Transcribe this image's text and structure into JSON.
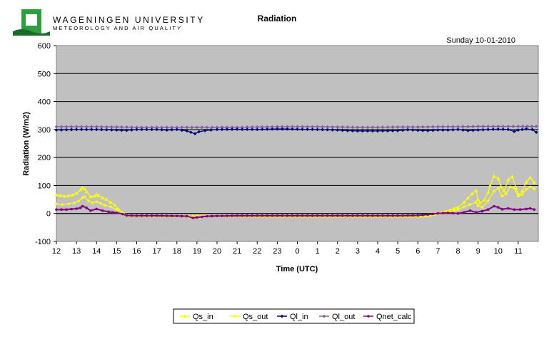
{
  "header": {
    "org_line1": "WAGENINGEN UNIVERSITY",
    "org_line2": "METEOROLOGY AND AIR QUALITY",
    "logo_color": "#2f9e3f"
  },
  "chart_data": {
    "type": "line",
    "title": "Radiation",
    "subtitle": "Sunday 10-01-2010",
    "xlabel": "Time (UTC)",
    "ylabel": "Radiation (W/m2)",
    "ylim": [
      -100,
      600
    ],
    "yticks": [
      -100,
      0,
      100,
      200,
      300,
      400,
      500,
      600
    ],
    "xticks": [
      "12",
      "13",
      "14",
      "15",
      "16",
      "17",
      "18",
      "19",
      "20",
      "21",
      "22",
      "23",
      "0",
      "1",
      "2",
      "3",
      "4",
      "5",
      "6",
      "7",
      "8",
      "9",
      "10",
      "11"
    ],
    "x_range_hours": [
      0,
      24
    ],
    "plot_background": "#c0c0c0",
    "grid": "horizontal",
    "legend_position": "bottom",
    "series": [
      {
        "name": "Qs_in",
        "color": "#ffff00",
        "marker": "triangle",
        "points": [
          [
            0,
            66
          ],
          [
            0.2,
            64
          ],
          [
            0.4,
            62
          ],
          [
            0.6,
            63
          ],
          [
            0.8,
            66
          ],
          [
            1,
            72
          ],
          [
            1.2,
            85
          ],
          [
            1.3,
            92
          ],
          [
            1.4,
            88
          ],
          [
            1.5,
            78
          ],
          [
            1.7,
            60
          ],
          [
            1.9,
            62
          ],
          [
            2,
            68
          ],
          [
            2.1,
            64
          ],
          [
            2.3,
            56
          ],
          [
            2.5,
            50
          ],
          [
            2.7,
            40
          ],
          [
            2.9,
            30
          ],
          [
            3.1,
            14
          ],
          [
            3.3,
            2
          ],
          [
            3.5,
            -6
          ],
          [
            4,
            -8
          ],
          [
            5,
            -9
          ],
          [
            6,
            -9
          ],
          [
            6.3,
            -9
          ],
          [
            6.6,
            -12
          ],
          [
            7,
            -8
          ],
          [
            8,
            -9
          ],
          [
            9,
            -9
          ],
          [
            10,
            -10
          ],
          [
            11,
            -10
          ],
          [
            12,
            -10
          ],
          [
            13,
            -10
          ],
          [
            14,
            -10
          ],
          [
            15,
            -10
          ],
          [
            16,
            -10
          ],
          [
            17,
            -10
          ],
          [
            18,
            -10
          ],
          [
            18.4,
            -8
          ],
          [
            18.8,
            -4
          ],
          [
            19.2,
            4
          ],
          [
            19.6,
            12
          ],
          [
            20,
            22
          ],
          [
            20.3,
            40
          ],
          [
            20.5,
            56
          ],
          [
            20.7,
            70
          ],
          [
            20.9,
            82
          ],
          [
            21,
            50
          ],
          [
            21.1,
            38
          ],
          [
            21.3,
            48
          ],
          [
            21.5,
            75
          ],
          [
            21.6,
            100
          ],
          [
            21.8,
            133
          ],
          [
            22,
            125
          ],
          [
            22.15,
            95
          ],
          [
            22.3,
            80
          ],
          [
            22.5,
            120
          ],
          [
            22.7,
            132
          ],
          [
            22.9,
            90
          ],
          [
            23,
            66
          ],
          [
            23.2,
            80
          ],
          [
            23.4,
            112
          ],
          [
            23.6,
            128
          ],
          [
            23.8,
            110
          ]
        ]
      },
      {
        "name": "Qs_out",
        "color": "#ffff00",
        "marker": "circle",
        "points": [
          [
            0,
            34
          ],
          [
            0.3,
            32
          ],
          [
            0.6,
            34
          ],
          [
            0.9,
            38
          ],
          [
            1.1,
            44
          ],
          [
            1.3,
            56
          ],
          [
            1.4,
            60
          ],
          [
            1.6,
            45
          ],
          [
            1.8,
            38
          ],
          [
            2,
            42
          ],
          [
            2.2,
            36
          ],
          [
            2.4,
            30
          ],
          [
            2.7,
            24
          ],
          [
            3,
            14
          ],
          [
            3.3,
            4
          ],
          [
            3.5,
            -6
          ],
          [
            4,
            -8
          ],
          [
            5,
            -9
          ],
          [
            6,
            -9
          ],
          [
            6.3,
            -9
          ],
          [
            6.6,
            -12
          ],
          [
            7,
            -8
          ],
          [
            8,
            -9
          ],
          [
            9,
            -9
          ],
          [
            10,
            -10
          ],
          [
            11,
            -10
          ],
          [
            12,
            -10
          ],
          [
            13,
            -10
          ],
          [
            14,
            -10
          ],
          [
            15,
            -10
          ],
          [
            16,
            -10
          ],
          [
            17,
            -10
          ],
          [
            18,
            -10
          ],
          [
            18.4,
            -8
          ],
          [
            18.8,
            -5
          ],
          [
            19.2,
            0
          ],
          [
            19.6,
            6
          ],
          [
            20,
            14
          ],
          [
            20.3,
            24
          ],
          [
            20.6,
            32
          ],
          [
            20.9,
            40
          ],
          [
            21,
            28
          ],
          [
            21.2,
            22
          ],
          [
            21.5,
            45
          ],
          [
            21.8,
            80
          ],
          [
            22,
            90
          ],
          [
            22.2,
            62
          ],
          [
            22.4,
            70
          ],
          [
            22.6,
            95
          ],
          [
            22.8,
            90
          ],
          [
            23,
            62
          ],
          [
            23.2,
            68
          ],
          [
            23.4,
            86
          ],
          [
            23.6,
            95
          ],
          [
            23.8,
            88
          ]
        ]
      },
      {
        "name": "Ql_in",
        "color": "#000080",
        "marker": "diamond",
        "points": [
          [
            0,
            298
          ],
          [
            1,
            300
          ],
          [
            2,
            300
          ],
          [
            3,
            298
          ],
          [
            3.5,
            297
          ],
          [
            4,
            300
          ],
          [
            5,
            300
          ],
          [
            5.5,
            298
          ],
          [
            6,
            300
          ],
          [
            6.5,
            295
          ],
          [
            6.7,
            290
          ],
          [
            6.9,
            285
          ],
          [
            7.1,
            292
          ],
          [
            7.4,
            296
          ],
          [
            8,
            300
          ],
          [
            9,
            301
          ],
          [
            10,
            300
          ],
          [
            11,
            302
          ],
          [
            12,
            301
          ],
          [
            13,
            300
          ],
          [
            14,
            298
          ],
          [
            14.5,
            296
          ],
          [
            15,
            295
          ],
          [
            16,
            295
          ],
          [
            17,
            296
          ],
          [
            17.5,
            299
          ],
          [
            18,
            297
          ],
          [
            18.5,
            296
          ],
          [
            19,
            298
          ],
          [
            19.5,
            298
          ],
          [
            20,
            300
          ],
          [
            20.5,
            296
          ],
          [
            21,
            298
          ],
          [
            21.5,
            300
          ],
          [
            22,
            301
          ],
          [
            22.5,
            300
          ],
          [
            22.8,
            293
          ],
          [
            23,
            298
          ],
          [
            23.4,
            302
          ],
          [
            23.7,
            300
          ],
          [
            23.9,
            290
          ]
        ]
      },
      {
        "name": "Ql_out",
        "color": "#7f5f9f",
        "marker": "diamond",
        "points": [
          [
            0,
            310
          ],
          [
            1,
            310
          ],
          [
            2,
            310
          ],
          [
            3,
            309
          ],
          [
            4,
            308
          ],
          [
            5,
            308
          ],
          [
            6,
            308
          ],
          [
            7,
            308
          ],
          [
            8,
            308
          ],
          [
            9,
            308
          ],
          [
            10,
            309
          ],
          [
            11,
            310
          ],
          [
            12,
            310
          ],
          [
            13,
            310
          ],
          [
            14,
            309
          ],
          [
            15,
            308
          ],
          [
            16,
            308
          ],
          [
            17,
            309
          ],
          [
            18,
            309
          ],
          [
            19,
            310
          ],
          [
            20,
            310
          ],
          [
            21,
            311
          ],
          [
            22,
            311
          ],
          [
            23,
            311
          ],
          [
            23.9,
            311
          ]
        ]
      },
      {
        "name": "Qnet_calc",
        "color": "#800080",
        "marker": "circle",
        "points": [
          [
            0,
            14
          ],
          [
            0.5,
            14
          ],
          [
            1,
            17
          ],
          [
            1.2,
            20
          ],
          [
            1.3,
            26
          ],
          [
            1.5,
            20
          ],
          [
            1.7,
            10
          ],
          [
            2,
            16
          ],
          [
            2.3,
            10
          ],
          [
            2.6,
            6
          ],
          [
            3,
            2
          ],
          [
            3.3,
            -2
          ],
          [
            3.5,
            -7
          ],
          [
            4,
            -8
          ],
          [
            5,
            -8
          ],
          [
            6,
            -9
          ],
          [
            6.5,
            -10
          ],
          [
            6.8,
            -16
          ],
          [
            7,
            -14
          ],
          [
            7.5,
            -10
          ],
          [
            8,
            -9
          ],
          [
            9,
            -8
          ],
          [
            10,
            -8
          ],
          [
            11,
            -8
          ],
          [
            12,
            -8
          ],
          [
            13,
            -8
          ],
          [
            14,
            -8
          ],
          [
            15,
            -8
          ],
          [
            16,
            -8
          ],
          [
            17,
            -8
          ],
          [
            18,
            -7
          ],
          [
            18.5,
            -4
          ],
          [
            19,
            0
          ],
          [
            19.5,
            2
          ],
          [
            20,
            0
          ],
          [
            20.3,
            4
          ],
          [
            20.6,
            10
          ],
          [
            20.9,
            4
          ],
          [
            21.2,
            8
          ],
          [
            21.5,
            14
          ],
          [
            21.8,
            26
          ],
          [
            22,
            22
          ],
          [
            22.2,
            15
          ],
          [
            22.5,
            18
          ],
          [
            22.8,
            14
          ],
          [
            23.1,
            14
          ],
          [
            23.4,
            16
          ],
          [
            23.6,
            18
          ],
          [
            23.8,
            14
          ]
        ]
      }
    ]
  }
}
